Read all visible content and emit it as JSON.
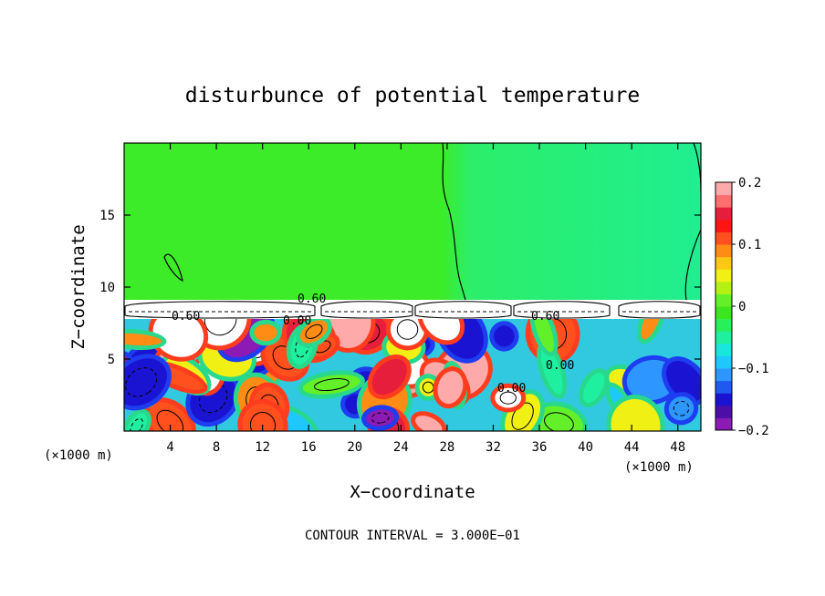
{
  "chart_data": {
    "type": "heatmap",
    "title": "disturbunce of potential temperature",
    "xlabel": "X−coordinate",
    "ylabel": "Z−coordinate",
    "x_unit_left": "(×1000 m)",
    "x_unit_right": "(×1000 m)",
    "footer": "CONTOUR INTERVAL = 3.000E−01",
    "xlim": [
      0,
      50
    ],
    "ylim": [
      0,
      20
    ],
    "x_ticks": [
      "4",
      "8",
      "12",
      "16",
      "20",
      "24",
      "28",
      "32",
      "36",
      "40",
      "44",
      "48"
    ],
    "x_tick_values": [
      4,
      8,
      12,
      16,
      20,
      24,
      28,
      32,
      36,
      40,
      44,
      48
    ],
    "y_ticks": [
      "5",
      "10",
      "15"
    ],
    "y_tick_values": [
      5,
      10,
      15
    ],
    "colorbar": {
      "range": [
        -0.2,
        0.2
      ],
      "tick_labels": [
        "0.2",
        "0.1",
        "0",
        "−0.1",
        "−0.2"
      ],
      "tick_values": [
        0.2,
        0.1,
        0,
        -0.1,
        -0.2
      ],
      "colors": [
        "#8c1ab4",
        "#4b0fa8",
        "#1a14d2",
        "#1f5af0",
        "#2d96ff",
        "#1ec8ff",
        "#19e6dc",
        "#1ef0a0",
        "#28f05a",
        "#3ce61e",
        "#64f028",
        "#b4f014",
        "#f0f014",
        "#ffc814",
        "#ff8c14",
        "#ff501e",
        "#ff1414",
        "#e61e3c",
        "#ff6e6e",
        "#ffaaaa"
      ]
    },
    "field_regions": [
      {
        "region": "upper layer z > 9.3",
        "value": 0.0,
        "note": "near-zero green, weak negative anomaly x > 28"
      },
      {
        "region": "tropopause band z 8-9.3",
        "value": 0.6,
        "note": "contour labels 0.60"
      },
      {
        "region": "lower layer z < 8",
        "value_range": [
          -0.2,
          0.2
        ],
        "note": "turbulent eddies, saturated white above 0.2"
      }
    ],
    "contour_labels": [
      "0.60",
      "0.60",
      "0.60",
      "0.00",
      "0.00",
      "0.00"
    ]
  }
}
